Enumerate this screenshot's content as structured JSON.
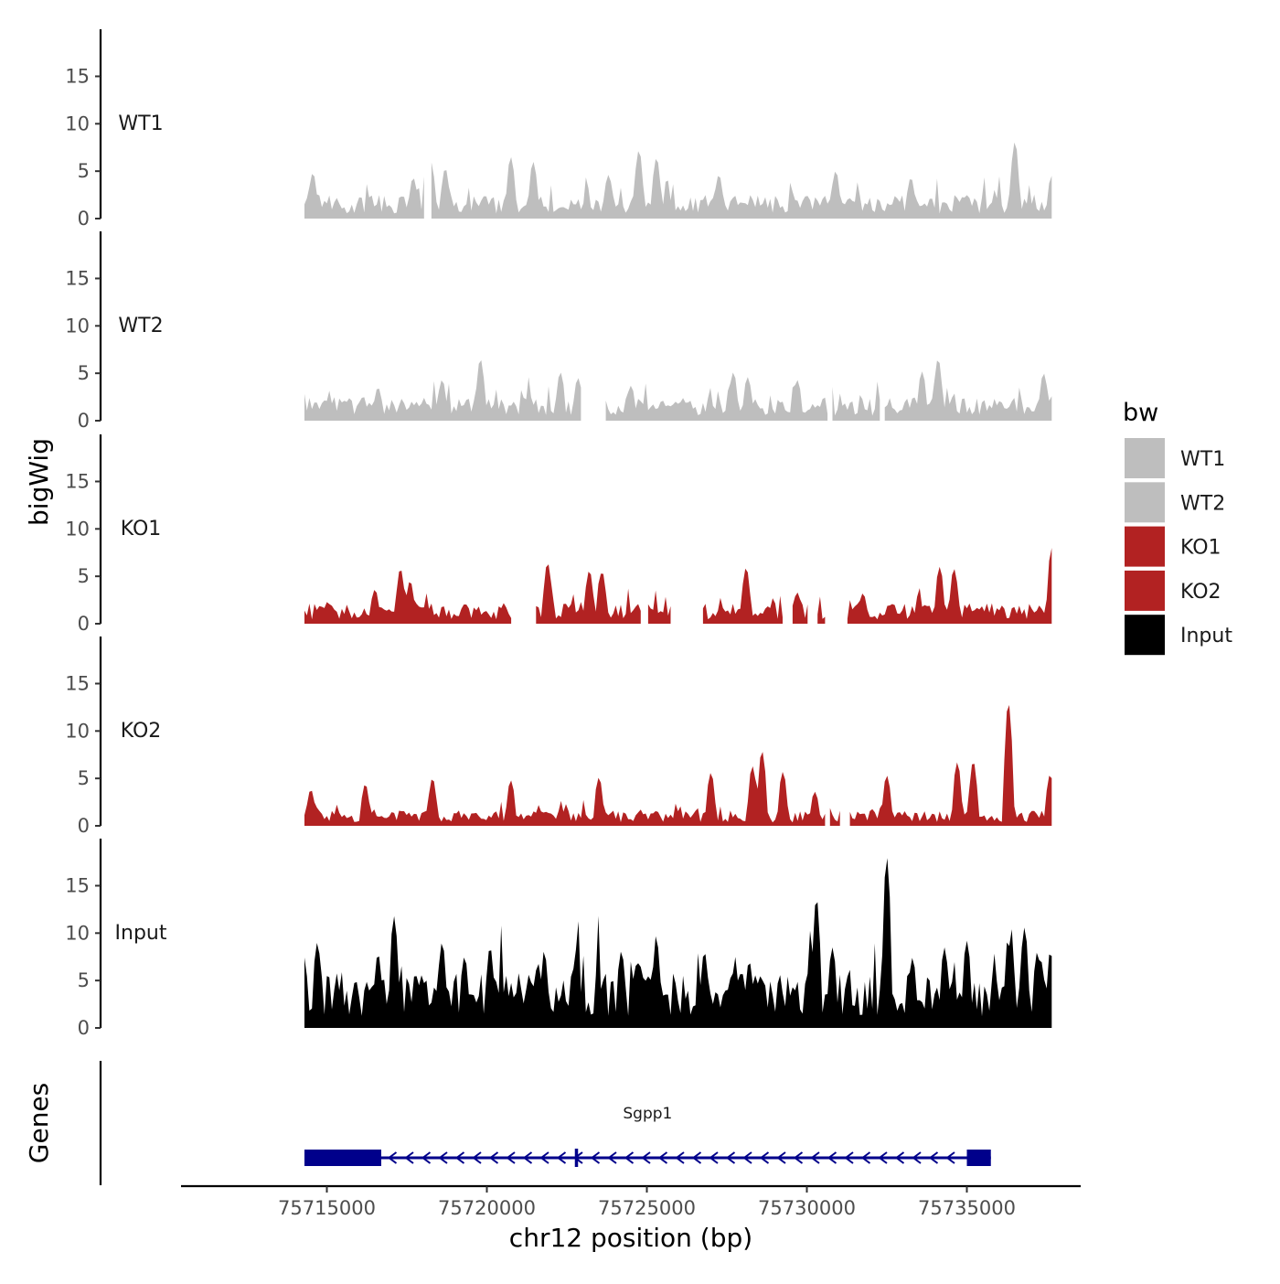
{
  "chart_data": {
    "type": "area",
    "chromosome": "chr12",
    "xlabel": "chr12 position (bp)",
    "ylabel": "bigWig",
    "genes_label": "Genes",
    "xlim": [
      75710500,
      75738500
    ],
    "data_range": [
      75714300,
      75737650
    ],
    "x_ticks": [
      75715000,
      75720000,
      75725000,
      75730000,
      75735000
    ],
    "x_tick_labels": [
      "75715000",
      "75720000",
      "75725000",
      "75730000",
      "75735000"
    ],
    "ylim": [
      0,
      19
    ],
    "y_ticks": [
      0,
      5,
      10,
      15
    ],
    "y_tick_labels": [
      "0",
      "5",
      "10",
      "15"
    ],
    "legend": {
      "title": "bw",
      "entries": [
        {
          "label": "WT1",
          "color": "#bebebe"
        },
        {
          "label": "WT2",
          "color": "#bebebe"
        },
        {
          "label": "KO1",
          "color": "#b22222"
        },
        {
          "label": "KO2",
          "color": "#b22222"
        },
        {
          "label": "Input",
          "color": "#000000"
        }
      ]
    },
    "series": [
      {
        "name": "WT1",
        "color": "#bebebe",
        "gaps": [
          [
            75718100,
            75718200
          ]
        ],
        "peaks": [
          [
            75714560,
            4.8
          ],
          [
            75717700,
            4.3
          ],
          [
            75718250,
            6.0
          ],
          [
            75718700,
            5.3
          ],
          [
            75720750,
            6.5
          ],
          [
            75721450,
            6.0
          ],
          [
            75723800,
            4.6
          ],
          [
            75724750,
            7.2
          ],
          [
            75725300,
            6.4
          ],
          [
            75727250,
            4.6
          ],
          [
            75730900,
            5.0
          ],
          [
            75733250,
            4.3
          ],
          [
            75736500,
            8.1
          ],
          [
            75737650,
            4.5
          ]
        ],
        "baseline": 1.5
      },
      {
        "name": "WT2",
        "color": "#bebebe",
        "gaps": [
          [
            75723000,
            75723700
          ],
          [
            75730650,
            75730750
          ],
          [
            75732300,
            75732400
          ]
        ],
        "peaks": [
          [
            75714650,
            2.0
          ],
          [
            75716600,
            3.5
          ],
          [
            75718600,
            4.3
          ],
          [
            75719800,
            6.5
          ],
          [
            75722300,
            5.1
          ],
          [
            75722850,
            4.5
          ],
          [
            75724500,
            3.7
          ],
          [
            75727700,
            5.1
          ],
          [
            75728150,
            4.6
          ],
          [
            75729700,
            4.3
          ],
          [
            75733600,
            5.2
          ],
          [
            75734100,
            6.5
          ],
          [
            75737400,
            5.0
          ]
        ],
        "baseline": 1.5
      },
      {
        "name": "KO1",
        "color": "#b22222",
        "gaps": [
          [
            75720800,
            75721500
          ],
          [
            75724850,
            75725000
          ],
          [
            75725800,
            75726700
          ],
          [
            75729300,
            75729500
          ],
          [
            75730100,
            75730300
          ],
          [
            75730600,
            75731200
          ]
        ],
        "peaks": [
          [
            75716500,
            3.6
          ],
          [
            75717300,
            5.8
          ],
          [
            75717600,
            4.5
          ],
          [
            75721900,
            6.4
          ],
          [
            75723200,
            5.6
          ],
          [
            75723600,
            5.5
          ],
          [
            75728100,
            5.9
          ],
          [
            75729700,
            3.3
          ],
          [
            75731750,
            3.2
          ],
          [
            75734150,
            6.0
          ],
          [
            75734600,
            5.8
          ],
          [
            75737650,
            8.0
          ]
        ],
        "baseline": 1.3
      },
      {
        "name": "KO2",
        "color": "#b22222",
        "gaps": [
          [
            75730600,
            75730650
          ],
          [
            75731100,
            75731300
          ]
        ],
        "peaks": [
          [
            75714500,
            3.8
          ],
          [
            75716200,
            4.4
          ],
          [
            75718300,
            5.0
          ],
          [
            75720750,
            4.8
          ],
          [
            75723500,
            5.1
          ],
          [
            75727000,
            5.6
          ],
          [
            75728300,
            6.3
          ],
          [
            75728600,
            7.9
          ],
          [
            75729250,
            5.7
          ],
          [
            75730250,
            3.6
          ],
          [
            75732500,
            5.3
          ],
          [
            75734700,
            6.7
          ],
          [
            75735200,
            6.8
          ],
          [
            75736300,
            13.0
          ],
          [
            75737600,
            5.4
          ]
        ],
        "baseline": 1.0
      },
      {
        "name": "Input",
        "color": "#000000",
        "gaps": [],
        "peaks": [
          [
            75714700,
            9.0
          ],
          [
            75715900,
            5.0
          ],
          [
            75716600,
            7.8
          ],
          [
            75717100,
            11.8
          ],
          [
            75718600,
            9.0
          ],
          [
            75719300,
            7.5
          ],
          [
            75720100,
            8.5
          ],
          [
            75721600,
            6.8
          ],
          [
            75722800,
            8.3
          ],
          [
            75724200,
            8.1
          ],
          [
            75724700,
            7.0
          ],
          [
            75725300,
            9.2
          ],
          [
            75726800,
            8.0
          ],
          [
            75728200,
            7.0
          ],
          [
            75730300,
            13.7
          ],
          [
            75730800,
            8.5
          ],
          [
            75732500,
            18.0
          ],
          [
            75733300,
            7.4
          ],
          [
            75734300,
            8.5
          ],
          [
            75735000,
            9.2
          ],
          [
            75736400,
            7.5
          ],
          [
            75736800,
            10.6
          ],
          [
            75737200,
            8.0
          ],
          [
            75737650,
            7.6
          ]
        ],
        "baseline": 3.5
      }
    ],
    "genes": [
      {
        "name": "Sgpp1",
        "strand": "-",
        "color": "#00008b",
        "exons": [
          [
            75714300,
            75716700
          ],
          [
            75722750,
            75722850
          ],
          [
            75735000,
            75735750
          ]
        ]
      }
    ]
  }
}
